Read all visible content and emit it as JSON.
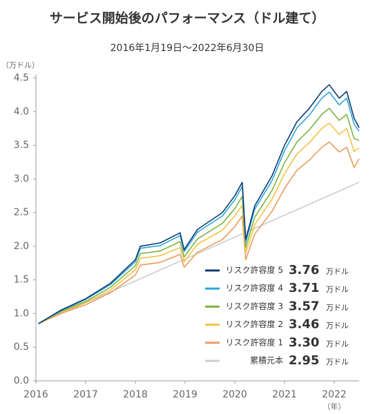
{
  "chart_data": {
    "type": "line",
    "title": "サービス開始後のパフォーマンス（ドル建て）",
    "subtitle": "2016年1月19日〜2022年6月30日",
    "y_axis_label": "（万ドル）",
    "x_axis_label": "（年）",
    "legend_unit": "万ドル",
    "xlim": [
      2016,
      2022.5
    ],
    "xticks": [
      2016,
      2017,
      2018,
      2019,
      2020,
      2021,
      2022
    ],
    "ylim": [
      0,
      4.5
    ],
    "yticks": [
      {
        "value": 0,
        "label": "0.0"
      },
      0.5,
      {
        "value": 1,
        "label": "1.0"
      },
      1.5,
      {
        "value": 2,
        "label": "2.0"
      },
      2.5,
      {
        "value": 3,
        "label": "3.0"
      },
      3.5,
      {
        "value": 4,
        "label": "4.0"
      },
      4.5
    ],
    "x": [
      2016.05,
      2016.5,
      2017.0,
      2017.5,
      2018.0,
      2018.1,
      2018.5,
      2018.9,
      2018.98,
      2019.25,
      2019.75,
      2020.0,
      2020.15,
      2020.22,
      2020.4,
      2020.75,
      2021.0,
      2021.25,
      2021.5,
      2021.75,
      2021.9,
      2022.1,
      2022.25,
      2022.4,
      2022.5
    ],
    "series": [
      {
        "name": "リスク許容度 5",
        "color": "#0d3b73",
        "legend_value": "3.76",
        "values": [
          0.85,
          1.05,
          1.22,
          1.45,
          1.8,
          2.0,
          2.05,
          2.2,
          1.95,
          2.25,
          2.5,
          2.75,
          2.95,
          2.1,
          2.6,
          3.05,
          3.5,
          3.85,
          4.05,
          4.3,
          4.4,
          4.2,
          4.3,
          3.9,
          3.76
        ]
      },
      {
        "name": "リスク許容度 4",
        "color": "#2aa7d9",
        "legend_value": "3.71",
        "values": [
          0.85,
          1.04,
          1.21,
          1.43,
          1.77,
          1.97,
          2.01,
          2.16,
          1.92,
          2.21,
          2.45,
          2.69,
          2.89,
          2.06,
          2.55,
          2.98,
          3.42,
          3.76,
          3.95,
          4.2,
          4.29,
          4.1,
          4.2,
          3.81,
          3.71
        ]
      },
      {
        "name": "リスク許容度 3",
        "color": "#7cb342",
        "legend_value": "3.57",
        "values": [
          0.85,
          1.03,
          1.18,
          1.39,
          1.71,
          1.89,
          1.93,
          2.07,
          1.84,
          2.11,
          2.34,
          2.56,
          2.74,
          1.98,
          2.43,
          2.83,
          3.24,
          3.55,
          3.73,
          3.96,
          4.05,
          3.87,
          3.96,
          3.6,
          3.57
        ]
      },
      {
        "name": "リスク許容度 2",
        "color": "#f5c242",
        "legend_value": "3.46",
        "values": [
          0.85,
          1.02,
          1.16,
          1.35,
          1.65,
          1.82,
          1.86,
          1.98,
          1.77,
          2.03,
          2.24,
          2.45,
          2.61,
          1.9,
          2.32,
          2.7,
          3.08,
          3.37,
          3.54,
          3.75,
          3.83,
          3.66,
          3.75,
          3.41,
          3.46
        ]
      },
      {
        "name": "リスク許容度 1",
        "color": "#ec9a5c",
        "legend_value": "3.30",
        "values": [
          0.85,
          1.0,
          1.13,
          1.31,
          1.57,
          1.72,
          1.76,
          1.88,
          1.69,
          1.91,
          2.1,
          2.29,
          2.45,
          1.8,
          2.18,
          2.52,
          2.86,
          3.13,
          3.28,
          3.47,
          3.55,
          3.4,
          3.47,
          3.17,
          3.3
        ]
      },
      {
        "name": "累積元本",
        "color": "#cccccc",
        "legend_value": "2.95",
        "x": [
          2016.05,
          2022.5
        ],
        "values": [
          0.85,
          2.95
        ]
      }
    ]
  }
}
